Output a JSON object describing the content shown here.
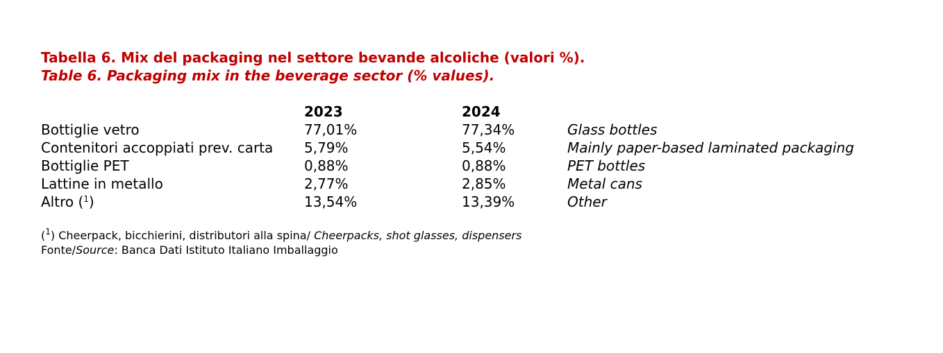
{
  "title": {
    "italian": "Tabella 6. Mix del packaging nel settore bevande alcoliche (valori %).",
    "english": "Table 6. Packaging mix in the beverage sector (% values)."
  },
  "table": {
    "headers": [
      "2023",
      "2024"
    ],
    "rows": [
      {
        "label": "Bottiglie vetro",
        "v2023": "77,01%",
        "v2024": "77,34%",
        "english": "Glass bottles"
      },
      {
        "label": "Contenitori accoppiati prev. carta",
        "v2023": "5,79%",
        "v2024": "5,54%",
        "english": "Mainly paper-based laminated packaging"
      },
      {
        "label": "Bottiglie PET",
        "v2023": "0,88%",
        "v2024": "0,88%",
        "english": "PET bottles"
      },
      {
        "label": "Lattine in metallo",
        "v2023": "2,77%",
        "v2024": "2,85%",
        "english": "Metal cans"
      },
      {
        "label": "Altro (",
        "note": "1",
        "label_close": ")",
        "v2023": "13,54%",
        "v2024": "13,39%",
        "english": "Other"
      }
    ]
  },
  "footnote": {
    "open": "(",
    "marker": "1",
    "close": ")",
    "text_it": " Cheerpack, bicchierini, distributori alla spina/ ",
    "text_en": "Cheerpacks, shot glasses, dispensers"
  },
  "source": {
    "label_it": "Fonte/",
    "label_en": "Source",
    "text": ": Banca Dati Istituto Italiano Imballaggio"
  },
  "colors": {
    "title": "#c00000",
    "text": "#000000",
    "background": "#ffffff"
  }
}
